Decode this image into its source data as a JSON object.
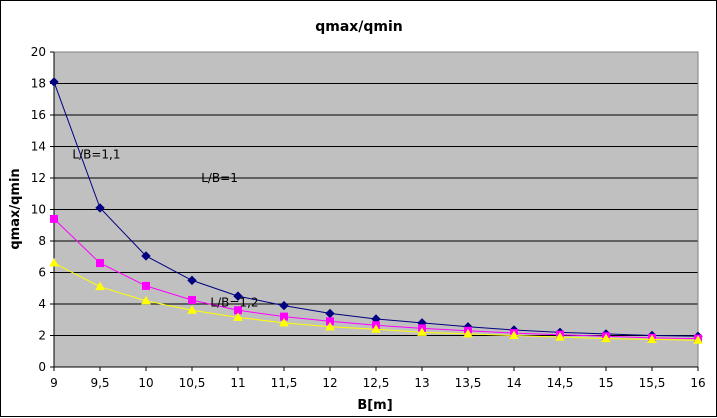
{
  "chart_data": {
    "type": "line",
    "title": "qmax/qmin",
    "xlabel": "B[m]",
    "ylabel": "qmax/qmin",
    "x": [
      9,
      9.5,
      10,
      10.5,
      11,
      11.5,
      12,
      12.5,
      13,
      13.5,
      14,
      14.5,
      15,
      15.5,
      16
    ],
    "x_tick_labels": [
      "9",
      "9,5",
      "10",
      "10,5",
      "11",
      "11,5",
      "12",
      "12,5",
      "13",
      "13,5",
      "14",
      "14,5",
      "15",
      "15,5",
      "16"
    ],
    "xlim": [
      9,
      16
    ],
    "ylim": [
      0,
      20
    ],
    "y_ticks": [
      0,
      2,
      4,
      6,
      8,
      10,
      12,
      14,
      16,
      18,
      20
    ],
    "grid": "horizontal",
    "plot_background": "#c0c0c0",
    "series": [
      {
        "color": "#000080",
        "marker": "diamond",
        "values": [
          18.1,
          10.1,
          7.05,
          5.5,
          4.5,
          3.9,
          3.4,
          3.05,
          2.8,
          2.55,
          2.35,
          2.2,
          2.1,
          2.0,
          1.95
        ]
      },
      {
        "color": "#ff00ff",
        "marker": "square",
        "values": [
          9.4,
          6.6,
          5.15,
          4.25,
          3.6,
          3.2,
          2.9,
          2.65,
          2.45,
          2.3,
          2.15,
          2.05,
          1.95,
          1.85,
          1.8
        ]
      },
      {
        "color": "#ffff00",
        "marker": "triangle",
        "values": [
          6.6,
          5.1,
          4.2,
          3.6,
          3.15,
          2.8,
          2.55,
          2.4,
          2.2,
          2.1,
          2.0,
          1.9,
          1.8,
          1.75,
          1.7
        ]
      }
    ],
    "annotations": [
      {
        "text": "L/B=1,1",
        "x": 9.2,
        "y": 13.5
      },
      {
        "text": "L/B=1",
        "x": 10.6,
        "y": 12.0
      },
      {
        "text": "L/B=1,2",
        "x": 10.7,
        "y": 4.1
      }
    ]
  }
}
